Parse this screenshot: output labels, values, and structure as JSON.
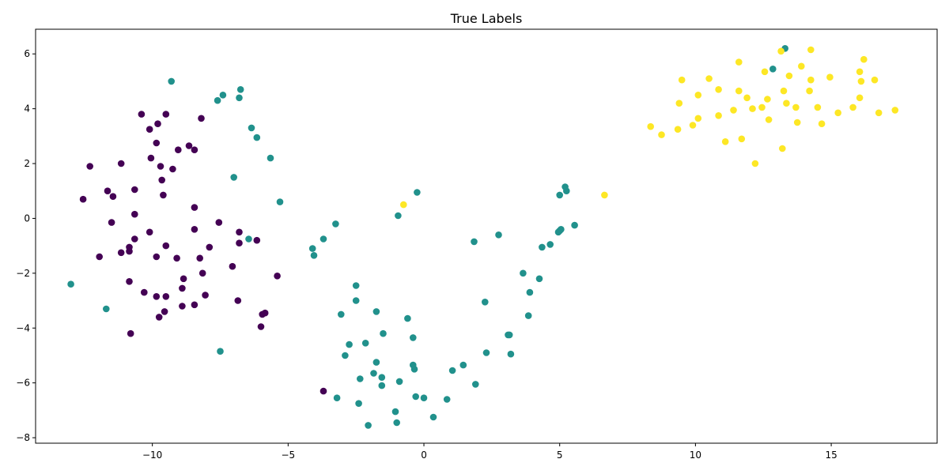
{
  "chart_data": {
    "type": "scatter",
    "title": "True Labels",
    "xlabel": "",
    "ylabel": "",
    "xlim": [
      -14.3,
      18.9
    ],
    "ylim": [
      -8.2,
      6.9
    ],
    "xticks": [
      -10,
      -5,
      0,
      5,
      10,
      15
    ],
    "yticks": [
      -8,
      -6,
      -4,
      -2,
      0,
      2,
      4,
      6
    ],
    "xtick_labels": [
      "−10",
      "−5",
      "0",
      "5",
      "10",
      "15"
    ],
    "ytick_labels": [
      "−8",
      "−6",
      "−4",
      "−2",
      "0",
      "2",
      "4",
      "6"
    ],
    "grid": false,
    "legend": "none",
    "colors": [
      "#440154",
      "#21918c",
      "#fde725"
    ],
    "series": [
      {
        "points": [
          [
            -10.4,
            3.8
          ],
          [
            -9.5,
            3.8
          ],
          [
            -8.2,
            3.65
          ],
          [
            -9.8,
            3.45
          ],
          [
            -10.1,
            3.25
          ],
          [
            -9.85,
            2.75
          ],
          [
            -8.65,
            2.65
          ],
          [
            -9.05,
            2.5
          ],
          [
            -8.45,
            2.5
          ],
          [
            -10.05,
            2.2
          ],
          [
            -12.3,
            1.9
          ],
          [
            -11.15,
            2.0
          ],
          [
            -9.7,
            1.9
          ],
          [
            -9.25,
            1.8
          ],
          [
            -9.65,
            1.4
          ],
          [
            -11.65,
            1.0
          ],
          [
            -10.65,
            1.05
          ],
          [
            -9.6,
            0.85
          ],
          [
            -11.45,
            0.8
          ],
          [
            -12.55,
            0.7
          ],
          [
            -8.45,
            0.4
          ],
          [
            -10.65,
            0.15
          ],
          [
            -11.5,
            -0.15
          ],
          [
            -7.55,
            -0.15
          ],
          [
            -10.1,
            -0.5
          ],
          [
            -8.45,
            -0.4
          ],
          [
            -10.65,
            -0.75
          ],
          [
            -6.8,
            -0.5
          ],
          [
            -6.15,
            -0.8
          ],
          [
            -6.8,
            -0.9
          ],
          [
            -9.5,
            -1.0
          ],
          [
            -7.9,
            -1.05
          ],
          [
            -10.85,
            -1.05
          ],
          [
            -10.85,
            -1.2
          ],
          [
            -11.15,
            -1.25
          ],
          [
            -11.95,
            -1.4
          ],
          [
            -9.85,
            -1.4
          ],
          [
            -9.1,
            -1.45
          ],
          [
            -8.25,
            -1.45
          ],
          [
            -7.05,
            -1.75
          ],
          [
            -8.15,
            -2.0
          ],
          [
            -5.4,
            -2.1
          ],
          [
            -8.85,
            -2.2
          ],
          [
            -10.85,
            -2.3
          ],
          [
            -8.9,
            -2.55
          ],
          [
            -10.3,
            -2.7
          ],
          [
            -8.05,
            -2.8
          ],
          [
            -9.5,
            -2.85
          ],
          [
            -9.85,
            -2.85
          ],
          [
            -6.85,
            -3.0
          ],
          [
            -8.45,
            -3.15
          ],
          [
            -8.9,
            -3.2
          ],
          [
            -9.55,
            -3.4
          ],
          [
            -5.85,
            -3.45
          ],
          [
            -5.95,
            -3.5
          ],
          [
            -9.75,
            -3.6
          ],
          [
            -6.0,
            -3.95
          ],
          [
            -10.8,
            -4.2
          ],
          [
            -3.7,
            -6.3
          ]
        ]
      },
      {
        "points": [
          [
            -9.3,
            5.0
          ],
          [
            -6.75,
            4.7
          ],
          [
            -7.4,
            4.5
          ],
          [
            -6.8,
            4.4
          ],
          [
            -7.6,
            4.3
          ],
          [
            -6.35,
            3.3
          ],
          [
            -6.15,
            2.95
          ],
          [
            -5.65,
            2.2
          ],
          [
            -7.0,
            1.5
          ],
          [
            -5.3,
            0.6
          ],
          [
            -0.25,
            0.95
          ],
          [
            -0.95,
            0.1
          ],
          [
            -3.25,
            -0.2
          ],
          [
            -6.45,
            -0.75
          ],
          [
            -3.7,
            -0.75
          ],
          [
            -4.1,
            -1.1
          ],
          [
            -4.05,
            -1.35
          ],
          [
            -13.0,
            -2.4
          ],
          [
            -11.7,
            -3.3
          ],
          [
            -7.5,
            -4.85
          ],
          [
            1.85,
            -0.85
          ],
          [
            2.75,
            -0.6
          ],
          [
            5.05,
            -0.4
          ],
          [
            5.0,
            -0.45
          ],
          [
            4.95,
            -0.5
          ],
          [
            5.55,
            -0.25
          ],
          [
            4.35,
            -1.05
          ],
          [
            4.65,
            -0.95
          ],
          [
            5.2,
            1.15
          ],
          [
            5.25,
            1.0
          ],
          [
            5.0,
            0.85
          ],
          [
            3.65,
            -2.0
          ],
          [
            4.25,
            -2.2
          ],
          [
            3.9,
            -2.7
          ],
          [
            3.85,
            -3.55
          ],
          [
            2.25,
            -3.05
          ],
          [
            3.1,
            -4.25
          ],
          [
            3.15,
            -4.25
          ],
          [
            3.2,
            -4.95
          ],
          [
            2.3,
            -4.9
          ],
          [
            -2.5,
            -2.45
          ],
          [
            -2.5,
            -3.0
          ],
          [
            -1.75,
            -3.4
          ],
          [
            -3.05,
            -3.5
          ],
          [
            -0.6,
            -3.65
          ],
          [
            -1.5,
            -4.2
          ],
          [
            -0.4,
            -4.35
          ],
          [
            -2.15,
            -4.55
          ],
          [
            -2.75,
            -4.6
          ],
          [
            -2.9,
            -5.0
          ],
          [
            -1.75,
            -5.25
          ],
          [
            -0.4,
            -5.35
          ],
          [
            -0.35,
            -5.5
          ],
          [
            1.45,
            -5.35
          ],
          [
            1.05,
            -5.55
          ],
          [
            -1.85,
            -5.65
          ],
          [
            -1.55,
            -5.8
          ],
          [
            -2.35,
            -5.85
          ],
          [
            -0.9,
            -5.95
          ],
          [
            -1.55,
            -6.1
          ],
          [
            1.9,
            -6.05
          ],
          [
            -0.3,
            -6.5
          ],
          [
            0.0,
            -6.55
          ],
          [
            0.85,
            -6.6
          ],
          [
            -3.2,
            -6.55
          ],
          [
            -2.4,
            -6.75
          ],
          [
            -1.05,
            -7.05
          ],
          [
            0.35,
            -7.25
          ],
          [
            -1.0,
            -7.45
          ],
          [
            -2.05,
            -7.55
          ],
          [
            12.85,
            5.45
          ],
          [
            13.3,
            6.2
          ]
        ]
      },
      {
        "points": [
          [
            13.15,
            6.1
          ],
          [
            14.25,
            6.15
          ],
          [
            16.2,
            5.8
          ],
          [
            11.6,
            5.7
          ],
          [
            13.9,
            5.55
          ],
          [
            16.05,
            5.35
          ],
          [
            12.55,
            5.35
          ],
          [
            13.45,
            5.2
          ],
          [
            14.95,
            5.15
          ],
          [
            9.5,
            5.05
          ],
          [
            10.5,
            5.1
          ],
          [
            14.25,
            5.05
          ],
          [
            16.1,
            5.0
          ],
          [
            16.6,
            5.05
          ],
          [
            10.85,
            4.7
          ],
          [
            11.6,
            4.65
          ],
          [
            13.25,
            4.65
          ],
          [
            14.2,
            4.65
          ],
          [
            10.1,
            4.5
          ],
          [
            11.9,
            4.4
          ],
          [
            12.65,
            4.35
          ],
          [
            16.05,
            4.4
          ],
          [
            9.4,
            4.2
          ],
          [
            13.35,
            4.2
          ],
          [
            12.45,
            4.05
          ],
          [
            13.7,
            4.05
          ],
          [
            14.5,
            4.05
          ],
          [
            15.8,
            4.05
          ],
          [
            11.4,
            3.95
          ],
          [
            12.1,
            4.0
          ],
          [
            17.35,
            3.95
          ],
          [
            15.25,
            3.85
          ],
          [
            16.75,
            3.85
          ],
          [
            10.85,
            3.75
          ],
          [
            10.1,
            3.65
          ],
          [
            12.7,
            3.6
          ],
          [
            13.75,
            3.5
          ],
          [
            14.65,
            3.45
          ],
          [
            9.9,
            3.4
          ],
          [
            8.35,
            3.35
          ],
          [
            9.35,
            3.25
          ],
          [
            8.75,
            3.05
          ],
          [
            11.1,
            2.8
          ],
          [
            11.7,
            2.9
          ],
          [
            13.2,
            2.55
          ],
          [
            12.2,
            2.0
          ],
          [
            6.65,
            0.85
          ],
          [
            -0.75,
            0.5
          ]
        ]
      }
    ]
  }
}
